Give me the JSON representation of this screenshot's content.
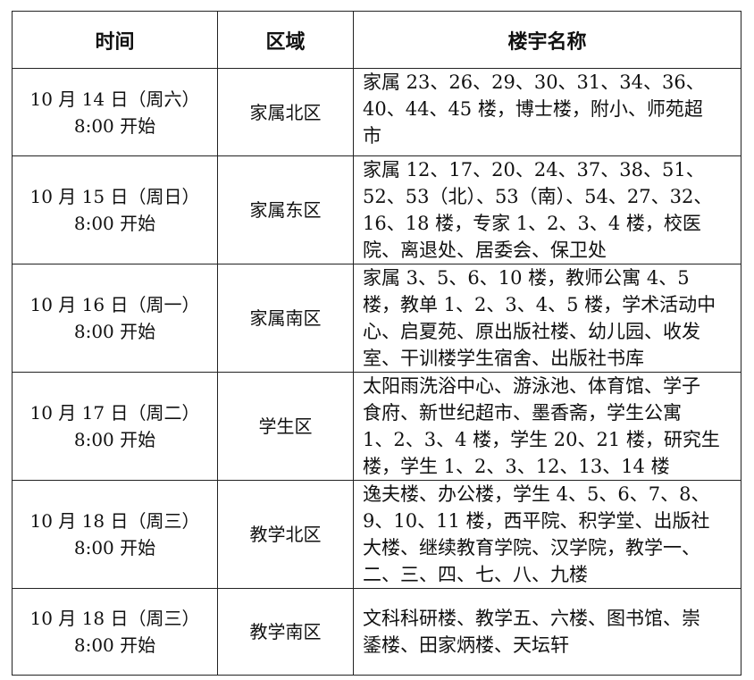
{
  "headers": {
    "time": "时间",
    "area": "区域",
    "buildings": "楼宇名称"
  },
  "rows": [
    {
      "date": "10 月 14 日（周六）",
      "start": "8:00 开始",
      "area": "家属北区",
      "lines": [
        "家属 23、26、29、30、31、34、36、",
        "40、44、45 楼，博士楼，附小、师苑超",
        "市"
      ]
    },
    {
      "date": "10 月 15 日（周日）",
      "start": "8:00 开始",
      "area": "家属东区",
      "lines": [
        "家属 12、17、20、24、37、38、51、",
        "52、53（北）、53（南）、54、27、32、",
        "16、18 楼，专家 1、2、3、4 楼，校医",
        "院、离退处、居委会、保卫处"
      ]
    },
    {
      "date": "10 月 16 日（周一）",
      "start": "8:00 开始",
      "area": "家属南区",
      "lines": [
        "家属 3、5、6、10 楼，教师公寓 4、5",
        "楼，教单 1、2、3、4、5 楼，学术活动中",
        "心、启夏苑、原出版社楼、幼儿园、收发",
        "室、干训楼学生宿舍、出版社书库"
      ]
    },
    {
      "date": "10 月 17 日（周二）",
      "start": "8:00 开始",
      "area": "学生区",
      "lines": [
        "太阳雨洗浴中心、游泳池、体育馆、学子",
        "食府、新世纪超市、墨香斋，学生公寓",
        "1、2、3、4 楼，学生 20、21 楼，研究生",
        "楼，学生 1、2、3、12、13、14 楼"
      ]
    },
    {
      "date": "10 月 18 日（周三）",
      "start": "8:00 开始",
      "area": "教学北区",
      "lines": [
        "逸夫楼、办公楼，学生 4、5、6、7、8、",
        "9、10、11 楼，西平院、积学堂、出版社",
        "大楼、继续教育学院、汉学院，教学一、",
        "二、三、四、七、八、九楼"
      ]
    },
    {
      "date": "10 月 18 日（周三）",
      "start": "8:00 开始",
      "area": "教学南区",
      "lines": [
        "文科科研楼、教学五、六楼、图书馆、崇",
        "鋈楼、田家炳楼、天坛轩"
      ]
    }
  ]
}
